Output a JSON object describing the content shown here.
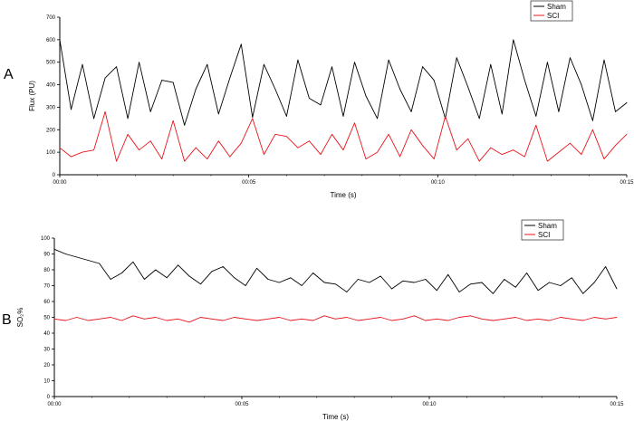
{
  "chart_data": [
    {
      "type": "line",
      "panel_label": "A",
      "xlabel": "Time (s)",
      "ylabel": "Flux (PU)",
      "xlim": [
        0,
        15
      ],
      "ylim": [
        0,
        700
      ],
      "x_ticks": [
        "00:00",
        "00:05",
        "00:10",
        "00:15"
      ],
      "y_ticks": [
        "0",
        "100",
        "200",
        "300",
        "400",
        "500",
        "600",
        "700"
      ],
      "legend_position": "top-right",
      "grid": false,
      "series": [
        {
          "name": "Sham",
          "color": "#000000",
          "x": [
            0,
            0.3,
            0.6,
            0.9,
            1.2,
            1.5,
            1.8,
            2.1,
            2.4,
            2.7,
            3.0,
            3.3,
            3.6,
            3.9,
            4.2,
            4.5,
            4.8,
            5.1,
            5.4,
            5.7,
            6.0,
            6.3,
            6.6,
            6.9,
            7.2,
            7.5,
            7.8,
            8.1,
            8.4,
            8.7,
            9.0,
            9.3,
            9.6,
            9.9,
            10.2,
            10.5,
            10.8,
            11.1,
            11.4,
            11.7,
            12.0,
            12.3,
            12.6,
            12.9,
            13.2,
            13.5,
            13.8,
            14.1,
            14.4,
            14.7,
            15.0
          ],
          "values": [
            600,
            290,
            490,
            250,
            430,
            480,
            250,
            500,
            280,
            420,
            410,
            220,
            380,
            490,
            270,
            430,
            580,
            255,
            490,
            380,
            260,
            510,
            340,
            310,
            480,
            260,
            500,
            350,
            250,
            510,
            380,
            280,
            480,
            420,
            250,
            520,
            390,
            250,
            490,
            270,
            600,
            420,
            260,
            500,
            280,
            520,
            400,
            240,
            510,
            280,
            320
          ]
        },
        {
          "name": "SCI",
          "color": "#e8141b",
          "x": [
            0,
            0.3,
            0.6,
            0.9,
            1.2,
            1.5,
            1.8,
            2.1,
            2.4,
            2.7,
            3.0,
            3.3,
            3.6,
            3.9,
            4.2,
            4.5,
            4.8,
            5.1,
            5.4,
            5.7,
            6.0,
            6.3,
            6.6,
            6.9,
            7.2,
            7.5,
            7.8,
            8.1,
            8.4,
            8.7,
            9.0,
            9.3,
            9.6,
            9.9,
            10.2,
            10.5,
            10.8,
            11.1,
            11.4,
            11.7,
            12.0,
            12.3,
            12.6,
            12.9,
            13.2,
            13.5,
            13.8,
            14.1,
            14.4,
            14.7,
            15.0
          ],
          "values": [
            120,
            80,
            100,
            110,
            280,
            60,
            180,
            110,
            150,
            70,
            240,
            60,
            120,
            70,
            150,
            80,
            140,
            250,
            90,
            180,
            170,
            120,
            150,
            90,
            180,
            110,
            230,
            70,
            100,
            180,
            80,
            200,
            130,
            70,
            260,
            110,
            160,
            60,
            120,
            90,
            110,
            80,
            220,
            60,
            100,
            140,
            90,
            200,
            70,
            130,
            180
          ]
        }
      ]
    },
    {
      "type": "line",
      "panel_label": "B",
      "xlabel": "Time (s)",
      "ylabel": "SO₂%",
      "xlim": [
        0,
        15
      ],
      "ylim": [
        0,
        100
      ],
      "x_ticks": [
        "00:00",
        "00:05",
        "00:10",
        "00:15"
      ],
      "y_ticks": [
        "0",
        "10",
        "20",
        "30",
        "40",
        "50",
        "60",
        "70",
        "80",
        "90",
        "100"
      ],
      "legend_position": "top-right",
      "grid": false,
      "series": [
        {
          "name": "Sham",
          "color": "#000000",
          "x": [
            0,
            0.3,
            0.6,
            0.9,
            1.2,
            1.5,
            1.8,
            2.1,
            2.4,
            2.7,
            3.0,
            3.3,
            3.6,
            3.9,
            4.2,
            4.5,
            4.8,
            5.1,
            5.4,
            5.7,
            6.0,
            6.3,
            6.6,
            6.9,
            7.2,
            7.5,
            7.8,
            8.1,
            8.4,
            8.7,
            9.0,
            9.3,
            9.6,
            9.9,
            10.2,
            10.5,
            10.8,
            11.1,
            11.4,
            11.7,
            12.0,
            12.3,
            12.6,
            12.9,
            13.2,
            13.5,
            13.8,
            14.1,
            14.4,
            14.7,
            15.0
          ],
          "values": [
            93,
            90,
            88,
            86,
            84,
            74,
            78,
            85,
            74,
            80,
            75,
            83,
            76,
            71,
            79,
            82,
            75,
            70,
            81,
            74,
            72,
            75,
            70,
            78,
            72,
            71,
            66,
            74,
            72,
            76,
            68,
            73,
            72,
            74,
            67,
            77,
            66,
            71,
            72,
            65,
            74,
            69,
            78,
            67,
            72,
            70,
            75,
            65,
            72,
            82,
            68
          ]
        },
        {
          "name": "SCI",
          "color": "#e8141b",
          "x": [
            0,
            0.3,
            0.6,
            0.9,
            1.2,
            1.5,
            1.8,
            2.1,
            2.4,
            2.7,
            3.0,
            3.3,
            3.6,
            3.9,
            4.2,
            4.5,
            4.8,
            5.1,
            5.4,
            5.7,
            6.0,
            6.3,
            6.6,
            6.9,
            7.2,
            7.5,
            7.8,
            8.1,
            8.4,
            8.7,
            9.0,
            9.3,
            9.6,
            9.9,
            10.2,
            10.5,
            10.8,
            11.1,
            11.4,
            11.7,
            12.0,
            12.3,
            12.6,
            12.9,
            13.2,
            13.5,
            13.8,
            14.1,
            14.4,
            14.7,
            15.0
          ],
          "values": [
            49,
            48,
            50,
            48,
            49,
            50,
            48,
            51,
            49,
            50,
            48,
            49,
            47,
            50,
            49,
            48,
            50,
            49,
            48,
            49,
            50,
            48,
            49,
            48,
            51,
            49,
            50,
            48,
            49,
            50,
            48,
            49,
            51,
            48,
            49,
            48,
            50,
            51,
            49,
            48,
            49,
            50,
            48,
            49,
            48,
            50,
            49,
            48,
            50,
            49,
            50
          ]
        }
      ]
    }
  ]
}
